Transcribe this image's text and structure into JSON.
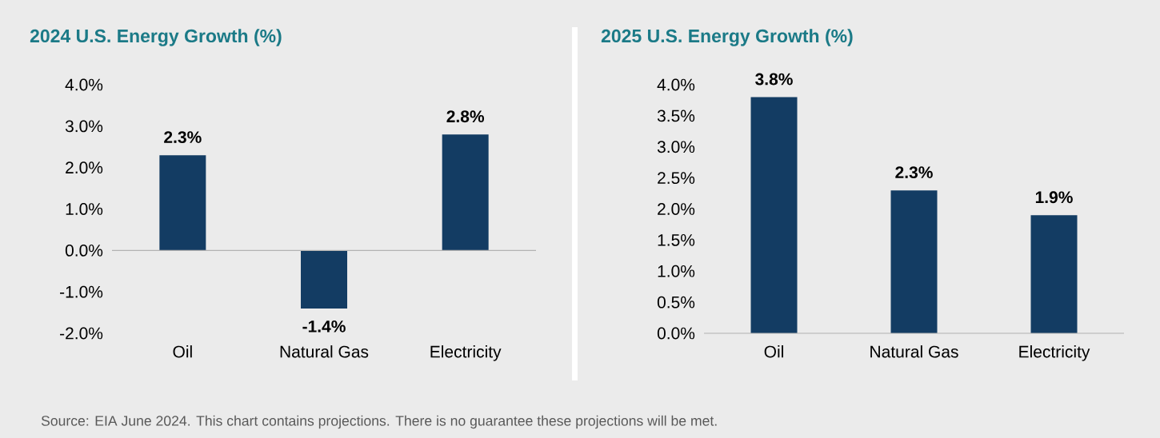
{
  "chart_data": [
    {
      "type": "bar",
      "title": "2024 U.S. Energy Growth (%)",
      "categories": [
        "Oil",
        "Natural Gas",
        "Electricity"
      ],
      "values": [
        2.3,
        -1.4,
        2.8
      ],
      "value_labels": [
        "2.3%",
        "-1.4%",
        "2.8%"
      ],
      "color": "#133c63",
      "ylim": [
        -2,
        4
      ],
      "yticks": [
        {
          "value": -2,
          "label": "-2.0%"
        },
        {
          "value": -1,
          "label": "-1.0%"
        },
        {
          "value": 0,
          "label": "0.0%"
        },
        {
          "value": 1,
          "label": "1.0%"
        },
        {
          "value": 2,
          "label": "2.0%"
        },
        {
          "value": 3,
          "label": "3.0%"
        },
        {
          "value": 4,
          "label": "4.0%"
        }
      ],
      "annotations": [
        "Source: EIA June 2024. This chart contains projections. There is no guarantee these projections will be met."
      ]
    },
    {
      "type": "bar",
      "title": "2025 U.S. Energy Growth (%)",
      "categories": [
        "Oil",
        "Natural Gas",
        "Electricity"
      ],
      "values": [
        3.8,
        2.3,
        1.9
      ],
      "value_labels": [
        "3.8%",
        "2.3%",
        "1.9%"
      ],
      "color": "#133c63",
      "ylim": [
        0,
        4
      ],
      "yticks": [
        {
          "value": 0,
          "label": "0.0%"
        },
        {
          "value": 0.5,
          "label": "0.5%"
        },
        {
          "value": 1,
          "label": "1.0%"
        },
        {
          "value": 1.5,
          "label": "1.5%"
        },
        {
          "value": 2,
          "label": "2.0%"
        },
        {
          "value": 2.5,
          "label": "2.5%"
        },
        {
          "value": 3,
          "label": "3.0%"
        },
        {
          "value": 3.5,
          "label": "3.5%"
        },
        {
          "value": 4,
          "label": "4.0%"
        }
      ]
    }
  ]
}
